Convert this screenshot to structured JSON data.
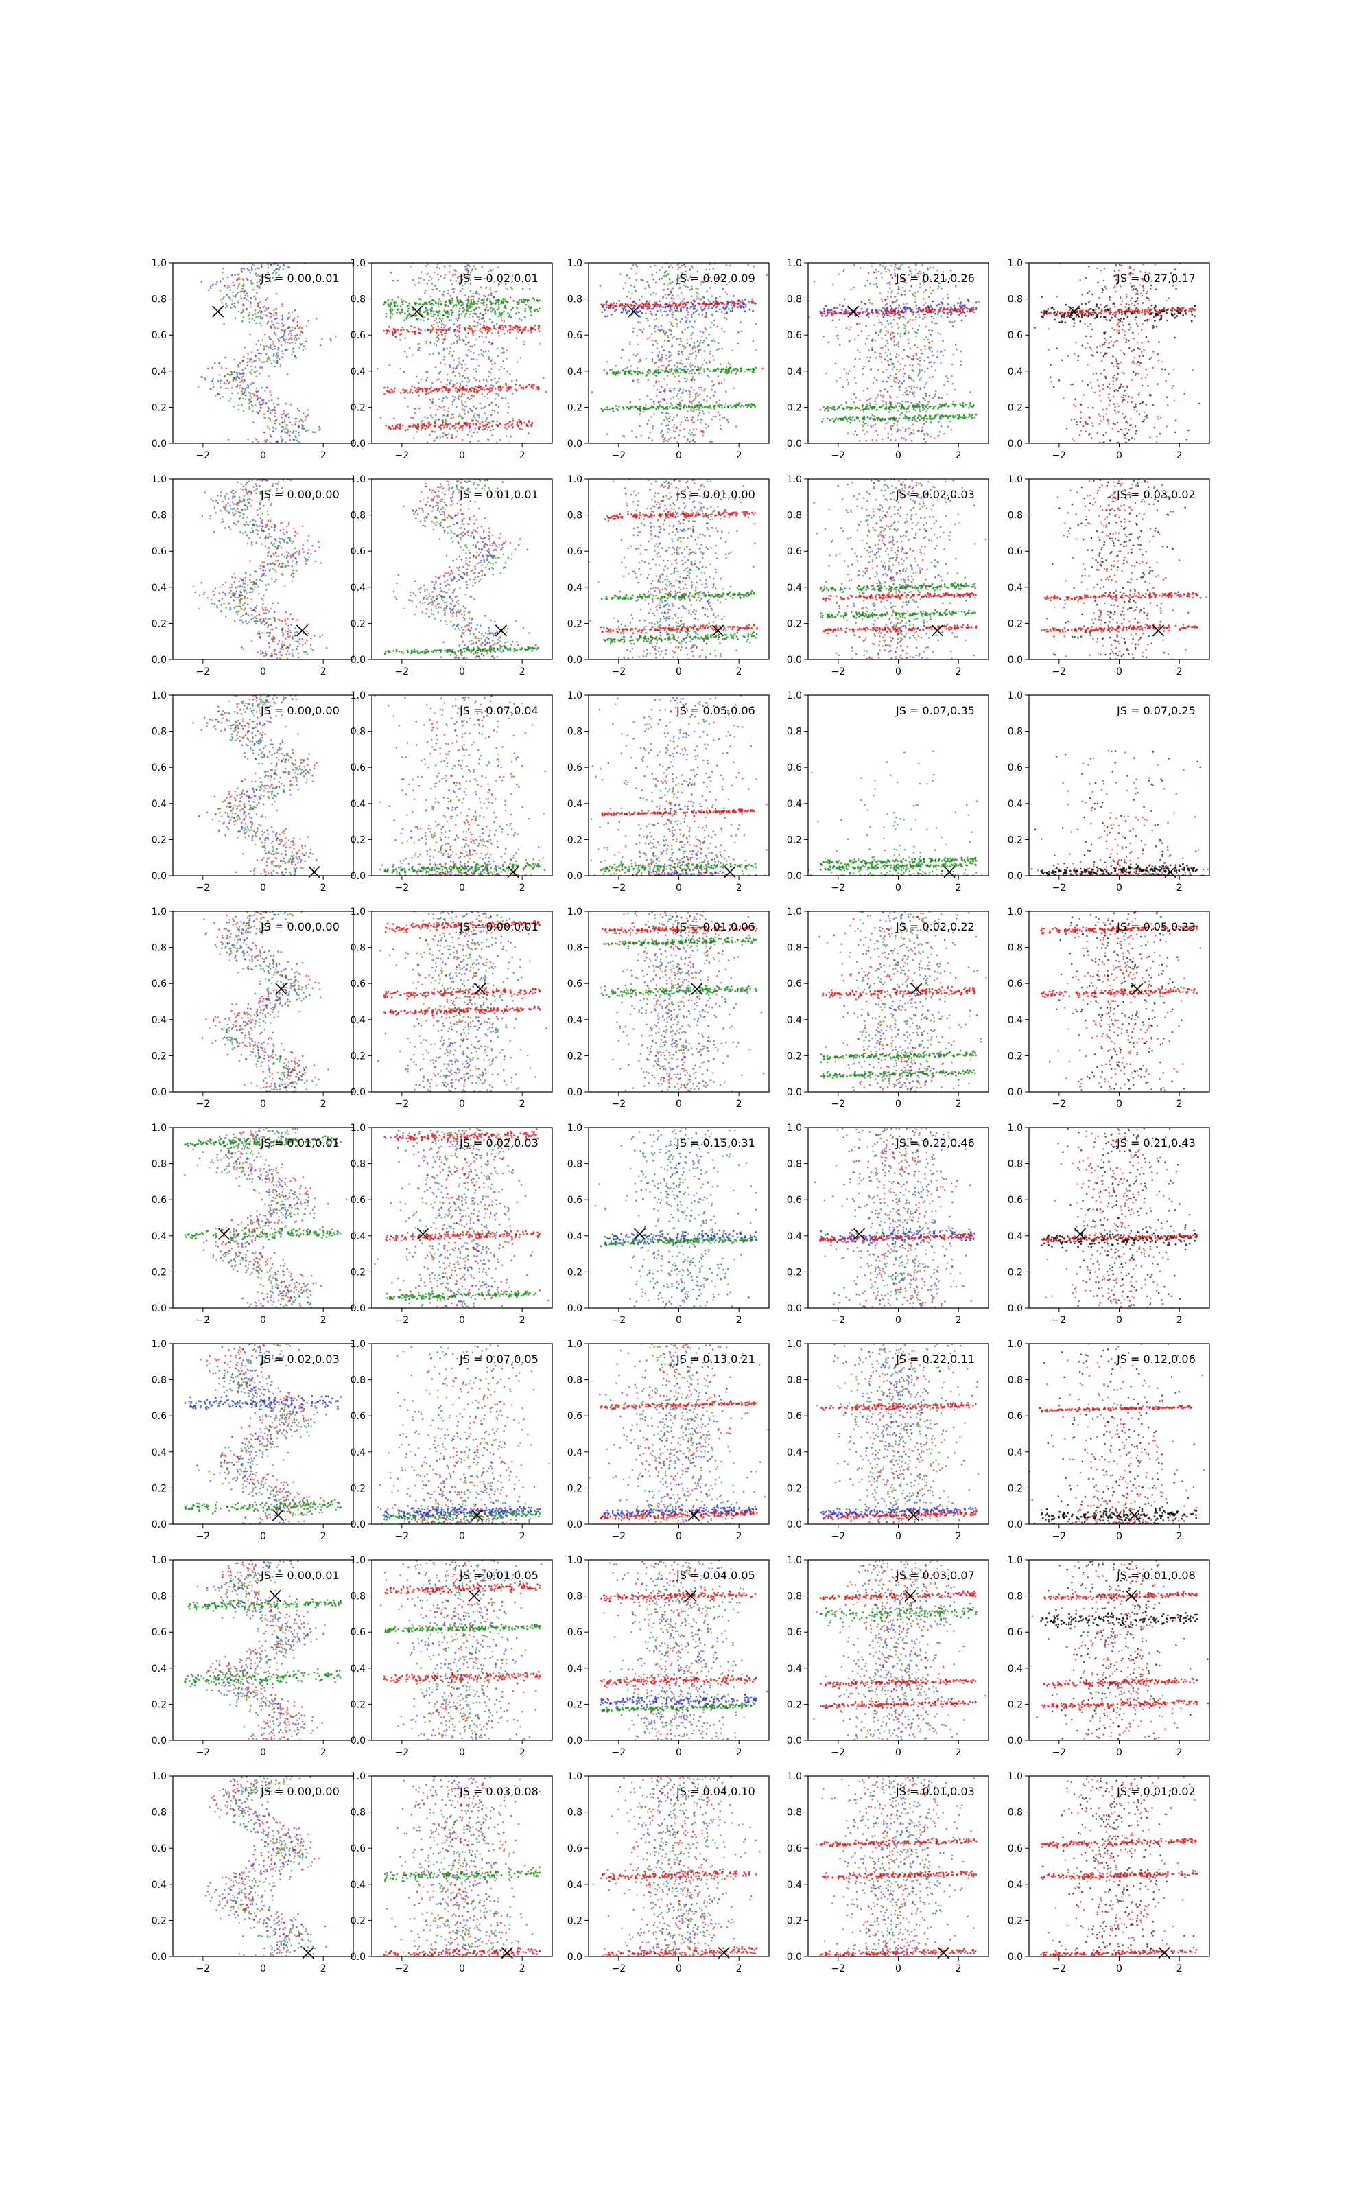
{
  "figure": {
    "rows": 8,
    "cols": 5,
    "xlim": [
      -3,
      3
    ],
    "ylim": [
      0,
      1
    ],
    "xticks": [
      -2,
      0,
      2
    ],
    "yticks": [
      0.0,
      0.2,
      0.4,
      0.6,
      0.8,
      1.0
    ],
    "colors": {
      "red": "#e41a1c",
      "green": "#1a8f1a",
      "blue": "#2b3bd9",
      "black": "#000000"
    }
  },
  "chart_data": [
    {
      "row": 0,
      "col": 0,
      "type": "scatter",
      "js": "JS = 0.00,0.01",
      "marker": [
        -1.5,
        0.73
      ],
      "series": [
        "red",
        "blue",
        "green"
      ],
      "mode": "sine",
      "bands": []
    },
    {
      "row": 0,
      "col": 1,
      "type": "scatter",
      "js": "JS = 0.02,0.01",
      "marker": [
        -1.5,
        0.73
      ],
      "series": [
        "red",
        "blue",
        "green"
      ],
      "mode": "scatter",
      "bands": [
        {
          "y": 0.73,
          "color": "green",
          "w": 0.05
        },
        {
          "y": 0.78,
          "color": "green",
          "w": 0.03
        },
        {
          "y": 0.63,
          "color": "red",
          "w": 0.03
        },
        {
          "y": 0.3,
          "color": "red",
          "w": 0.03
        },
        {
          "y": 0.1,
          "color": "red",
          "w": 0.03
        }
      ]
    },
    {
      "row": 0,
      "col": 2,
      "type": "scatter",
      "js": "JS = 0.02,0.09",
      "marker": [
        -1.5,
        0.73
      ],
      "series": [
        "blue",
        "green",
        "red"
      ],
      "mode": "scatter",
      "bands": [
        {
          "y": 0.75,
          "color": "blue",
          "w": 0.06
        },
        {
          "y": 0.77,
          "color": "red",
          "w": 0.02
        },
        {
          "y": 0.4,
          "color": "green",
          "w": 0.02
        },
        {
          "y": 0.2,
          "color": "green",
          "w": 0.02
        }
      ]
    },
    {
      "row": 0,
      "col": 3,
      "type": "scatter",
      "js": "JS = 0.21,0.26",
      "marker": [
        -1.5,
        0.73
      ],
      "series": [
        "blue",
        "green",
        "red"
      ],
      "mode": "scatter",
      "bands": [
        {
          "y": 0.74,
          "color": "blue",
          "w": 0.06
        },
        {
          "y": 0.73,
          "color": "red",
          "w": 0.02
        },
        {
          "y": 0.2,
          "color": "green",
          "w": 0.02
        },
        {
          "y": 0.14,
          "color": "green",
          "w": 0.02
        }
      ]
    },
    {
      "row": 0,
      "col": 4,
      "type": "scatter",
      "js": "JS = 0.27,0.17",
      "marker": [
        -1.5,
        0.73
      ],
      "series": [
        "black",
        "red"
      ],
      "mode": "scatter",
      "bands": [
        {
          "y": 0.72,
          "color": "black",
          "w": 0.06
        },
        {
          "y": 0.73,
          "color": "red",
          "w": 0.02
        }
      ]
    },
    {
      "row": 1,
      "col": 0,
      "type": "scatter",
      "js": "JS = 0.00,0.00",
      "marker": [
        1.3,
        0.16
      ],
      "series": [
        "red",
        "blue",
        "green"
      ],
      "mode": "sine",
      "bands": []
    },
    {
      "row": 1,
      "col": 1,
      "type": "scatter",
      "js": "JS = 0.01,0.01",
      "marker": [
        1.3,
        0.16
      ],
      "series": [
        "red",
        "blue",
        "green"
      ],
      "mode": "sine",
      "bands": [
        {
          "y": 0.05,
          "color": "green",
          "w": 0.02
        }
      ]
    },
    {
      "row": 1,
      "col": 2,
      "type": "scatter",
      "js": "JS = 0.01,0.00",
      "marker": [
        1.3,
        0.16
      ],
      "series": [
        "red",
        "blue",
        "green"
      ],
      "mode": "scatter",
      "bands": [
        {
          "y": 0.12,
          "color": "green",
          "w": 0.03
        },
        {
          "y": 0.17,
          "color": "red",
          "w": 0.02
        },
        {
          "y": 0.35,
          "color": "green",
          "w": 0.02
        },
        {
          "y": 0.8,
          "color": "red",
          "w": 0.02
        }
      ]
    },
    {
      "row": 1,
      "col": 3,
      "type": "scatter",
      "js": "JS = 0.02,0.03",
      "marker": [
        1.3,
        0.16
      ],
      "series": [
        "green",
        "blue",
        "red"
      ],
      "mode": "scatter",
      "bands": [
        {
          "y": 0.17,
          "color": "red",
          "w": 0.02
        },
        {
          "y": 0.35,
          "color": "red",
          "w": 0.02
        },
        {
          "y": 0.4,
          "color": "green",
          "w": 0.02
        },
        {
          "y": 0.25,
          "color": "green",
          "w": 0.02
        }
      ]
    },
    {
      "row": 1,
      "col": 4,
      "type": "scatter",
      "js": "JS = 0.03,0.02",
      "marker": [
        1.3,
        0.16
      ],
      "series": [
        "black",
        "red"
      ],
      "mode": "scatter",
      "bands": [
        {
          "y": 0.17,
          "color": "red",
          "w": 0.02
        },
        {
          "y": 0.35,
          "color": "red",
          "w": 0.02
        }
      ]
    },
    {
      "row": 2,
      "col": 0,
      "type": "scatter",
      "js": "JS = 0.00,0.00",
      "marker": [
        1.7,
        0.02
      ],
      "series": [
        "red",
        "blue",
        "green"
      ],
      "mode": "sine",
      "bands": []
    },
    {
      "row": 2,
      "col": 1,
      "type": "scatter",
      "js": "JS = 0.07,0.04",
      "marker": [
        1.7,
        0.02
      ],
      "series": [
        "blue",
        "red",
        "green"
      ],
      "mode": "low",
      "bands": [
        {
          "y": 0.04,
          "color": "green",
          "w": 0.03
        }
      ]
    },
    {
      "row": 2,
      "col": 2,
      "type": "scatter",
      "js": "JS = 0.05,0.06",
      "marker": [
        1.7,
        0.02
      ],
      "series": [
        "green",
        "red",
        "blue"
      ],
      "mode": "low",
      "bands": [
        {
          "y": 0.05,
          "color": "green",
          "w": 0.03
        },
        {
          "y": 0.35,
          "color": "red",
          "w": 0.01
        }
      ]
    },
    {
      "row": 2,
      "col": 3,
      "type": "scatter",
      "js": "JS = 0.07,0.35",
      "marker": [
        1.7,
        0.02
      ],
      "series": [
        "green"
      ],
      "mode": "flat",
      "bands": [
        {
          "y": 0.08,
          "color": "green",
          "w": 0.02
        },
        {
          "y": 0.05,
          "color": "green",
          "w": 0.02
        }
      ]
    },
    {
      "row": 2,
      "col": 4,
      "type": "scatter",
      "js": "JS = 0.07,0.25",
      "marker": [
        1.7,
        0.02
      ],
      "series": [
        "black",
        "red"
      ],
      "mode": "flat",
      "bands": [
        {
          "y": 0.03,
          "color": "black",
          "w": 0.03
        }
      ]
    },
    {
      "row": 3,
      "col": 0,
      "type": "scatter",
      "js": "JS = 0.00,0.00",
      "marker": [
        0.6,
        0.57
      ],
      "series": [
        "red",
        "blue",
        "green"
      ],
      "mode": "sine",
      "bands": []
    },
    {
      "row": 3,
      "col": 1,
      "type": "scatter",
      "js": "JS = 0.00,0.01",
      "marker": [
        0.6,
        0.57
      ],
      "series": [
        "red",
        "blue",
        "green"
      ],
      "mode": "scatter",
      "bands": [
        {
          "y": 0.92,
          "color": "red",
          "w": 0.03
        },
        {
          "y": 0.55,
          "color": "red",
          "w": 0.03
        },
        {
          "y": 0.45,
          "color": "red",
          "w": 0.02
        }
      ]
    },
    {
      "row": 3,
      "col": 2,
      "type": "scatter",
      "js": "JS = 0.01,0.06",
      "marker": [
        0.6,
        0.57
      ],
      "series": [
        "blue",
        "green",
        "red"
      ],
      "mode": "scatter",
      "bands": [
        {
          "y": 0.56,
          "color": "green",
          "w": 0.03
        },
        {
          "y": 0.9,
          "color": "red",
          "w": 0.02
        },
        {
          "y": 0.83,
          "color": "green",
          "w": 0.02
        }
      ]
    },
    {
      "row": 3,
      "col": 3,
      "type": "scatter",
      "js": "JS = 0.02,0.22",
      "marker": [
        0.6,
        0.57
      ],
      "series": [
        "blue",
        "green",
        "red"
      ],
      "mode": "scatter",
      "bands": [
        {
          "y": 0.55,
          "color": "red",
          "w": 0.03
        },
        {
          "y": 0.2,
          "color": "green",
          "w": 0.02
        },
        {
          "y": 0.1,
          "color": "green",
          "w": 0.02
        }
      ]
    },
    {
      "row": 3,
      "col": 4,
      "type": "scatter",
      "js": "JS = 0.05,0.23",
      "marker": [
        0.6,
        0.57
      ],
      "series": [
        "black",
        "red"
      ],
      "mode": "scatter",
      "bands": [
        {
          "y": 0.55,
          "color": "red",
          "w": 0.03
        },
        {
          "y": 0.9,
          "color": "red",
          "w": 0.02
        }
      ]
    },
    {
      "row": 4,
      "col": 0,
      "type": "scatter",
      "js": "JS = 0.01,0.01",
      "marker": [
        -1.3,
        0.41
      ],
      "series": [
        "red",
        "blue",
        "green"
      ],
      "mode": "sine",
      "bands": [
        {
          "y": 0.41,
          "color": "green",
          "w": 0.04
        },
        {
          "y": 0.92,
          "color": "green",
          "w": 0.03
        }
      ]
    },
    {
      "row": 4,
      "col": 1,
      "type": "scatter",
      "js": "JS = 0.02,0.03",
      "marker": [
        -1.3,
        0.41
      ],
      "series": [
        "green",
        "blue",
        "red"
      ],
      "mode": "scatter",
      "bands": [
        {
          "y": 0.4,
          "color": "red",
          "w": 0.03
        },
        {
          "y": 0.95,
          "color": "red",
          "w": 0.03
        },
        {
          "y": 0.07,
          "color": "green",
          "w": 0.02
        }
      ]
    },
    {
      "row": 4,
      "col": 2,
      "type": "scatter",
      "js": "JS = 0.15,0.31",
      "marker": [
        -1.3,
        0.41
      ],
      "series": [
        "blue",
        "green"
      ],
      "mode": "scatter",
      "bands": [
        {
          "y": 0.39,
          "color": "blue",
          "w": 0.05
        },
        {
          "y": 0.37,
          "color": "green",
          "w": 0.02
        }
      ]
    },
    {
      "row": 4,
      "col": 3,
      "type": "scatter",
      "js": "JS = 0.22,0.46",
      "marker": [
        -1.3,
        0.41
      ],
      "series": [
        "green",
        "blue",
        "red"
      ],
      "mode": "scatter",
      "bands": [
        {
          "y": 0.39,
          "color": "blue",
          "w": 0.05
        },
        {
          "y": 0.39,
          "color": "red",
          "w": 0.02
        }
      ]
    },
    {
      "row": 4,
      "col": 4,
      "type": "scatter",
      "js": "JS = 0.21,0.43",
      "marker": [
        -1.3,
        0.41
      ],
      "series": [
        "black",
        "red"
      ],
      "mode": "scatter",
      "bands": [
        {
          "y": 0.38,
          "color": "black",
          "w": 0.05
        },
        {
          "y": 0.39,
          "color": "red",
          "w": 0.02
        }
      ]
    },
    {
      "row": 5,
      "col": 0,
      "type": "scatter",
      "js": "JS = 0.02,0.03",
      "marker": [
        0.5,
        0.05
      ],
      "series": [
        "red",
        "blue",
        "green"
      ],
      "mode": "sine",
      "bands": [
        {
          "y": 0.67,
          "color": "blue",
          "w": 0.05
        },
        {
          "y": 0.1,
          "color": "green",
          "w": 0.04
        }
      ]
    },
    {
      "row": 5,
      "col": 1,
      "type": "scatter",
      "js": "JS = 0.07,0.05",
      "marker": [
        0.5,
        0.05
      ],
      "series": [
        "blue",
        "green",
        "red"
      ],
      "mode": "low",
      "bands": [
        {
          "y": 0.05,
          "color": "green",
          "w": 0.03
        },
        {
          "y": 0.07,
          "color": "blue",
          "w": 0.03
        }
      ]
    },
    {
      "row": 5,
      "col": 2,
      "type": "scatter",
      "js": "JS = 0.13,0.21",
      "marker": [
        0.5,
        0.05
      ],
      "series": [
        "green",
        "blue",
        "red"
      ],
      "mode": "scatter",
      "bands": [
        {
          "y": 0.66,
          "color": "red",
          "w": 0.02
        },
        {
          "y": 0.07,
          "color": "blue",
          "w": 0.03
        },
        {
          "y": 0.05,
          "color": "red",
          "w": 0.02
        }
      ]
    },
    {
      "row": 5,
      "col": 3,
      "type": "scatter",
      "js": "JS = 0.22,0.11",
      "marker": [
        0.5,
        0.05
      ],
      "series": [
        "green",
        "blue",
        "red"
      ],
      "mode": "scatter",
      "bands": [
        {
          "y": 0.65,
          "color": "red",
          "w": 0.02
        },
        {
          "y": 0.07,
          "color": "blue",
          "w": 0.03
        },
        {
          "y": 0.05,
          "color": "red",
          "w": 0.02
        }
      ]
    },
    {
      "row": 5,
      "col": 4,
      "type": "scatter",
      "js": "JS = 0.12,0.06",
      "marker": [
        0.5,
        0.05
      ],
      "series": [
        "black",
        "red"
      ],
      "mode": "low",
      "bands": [
        {
          "y": 0.05,
          "color": "black",
          "w": 0.04
        },
        {
          "y": 0.64,
          "color": "red",
          "w": 0.01
        }
      ]
    },
    {
      "row": 6,
      "col": 0,
      "type": "scatter",
      "js": "JS = 0.00,0.01",
      "marker": [
        0.4,
        0.8
      ],
      "series": [
        "red",
        "blue",
        "green"
      ],
      "mode": "sine",
      "bands": [
        {
          "y": 0.35,
          "color": "green",
          "w": 0.05
        },
        {
          "y": 0.75,
          "color": "green",
          "w": 0.03
        }
      ]
    },
    {
      "row": 6,
      "col": 1,
      "type": "scatter",
      "js": "JS = 0.01,0.05",
      "marker": [
        0.4,
        0.8
      ],
      "series": [
        "blue",
        "green",
        "red"
      ],
      "mode": "scatter",
      "bands": [
        {
          "y": 0.84,
          "color": "red",
          "w": 0.03
        },
        {
          "y": 0.35,
          "color": "red",
          "w": 0.03
        },
        {
          "y": 0.62,
          "color": "green",
          "w": 0.02
        }
      ]
    },
    {
      "row": 6,
      "col": 2,
      "type": "scatter",
      "js": "JS = 0.04,0.05",
      "marker": [
        0.4,
        0.8
      ],
      "series": [
        "green",
        "blue",
        "red"
      ],
      "mode": "scatter",
      "bands": [
        {
          "y": 0.8,
          "color": "red",
          "w": 0.03
        },
        {
          "y": 0.33,
          "color": "red",
          "w": 0.03
        },
        {
          "y": 0.22,
          "color": "blue",
          "w": 0.04
        },
        {
          "y": 0.18,
          "color": "green",
          "w": 0.02
        }
      ]
    },
    {
      "row": 6,
      "col": 3,
      "type": "scatter",
      "js": "JS = 0.03,0.07",
      "marker": [
        0.4,
        0.8
      ],
      "series": [
        "green",
        "blue",
        "red"
      ],
      "mode": "scatter",
      "bands": [
        {
          "y": 0.7,
          "color": "green",
          "w": 0.05
        },
        {
          "y": 0.8,
          "color": "red",
          "w": 0.02
        },
        {
          "y": 0.32,
          "color": "red",
          "w": 0.02
        },
        {
          "y": 0.2,
          "color": "red",
          "w": 0.02
        }
      ]
    },
    {
      "row": 6,
      "col": 4,
      "type": "scatter",
      "js": "JS = 0.01,0.08",
      "marker": [
        0.4,
        0.8
      ],
      "series": [
        "black",
        "red"
      ],
      "mode": "scatter",
      "bands": [
        {
          "y": 0.67,
          "color": "black",
          "w": 0.05
        },
        {
          "y": 0.8,
          "color": "red",
          "w": 0.02
        },
        {
          "y": 0.32,
          "color": "red",
          "w": 0.02
        },
        {
          "y": 0.2,
          "color": "red",
          "w": 0.02
        }
      ]
    },
    {
      "row": 7,
      "col": 0,
      "type": "scatter",
      "js": "JS = 0.00,0.00",
      "marker": [
        1.5,
        0.02
      ],
      "series": [
        "red",
        "blue",
        "green"
      ],
      "mode": "sine",
      "bands": []
    },
    {
      "row": 7,
      "col": 1,
      "type": "scatter",
      "js": "JS = 0.03,0.08",
      "marker": [
        1.5,
        0.02
      ],
      "series": [
        "blue",
        "green",
        "red"
      ],
      "mode": "scatter",
      "bands": [
        {
          "y": 0.45,
          "color": "green",
          "w": 0.04
        },
        {
          "y": 0.02,
          "color": "red",
          "w": 0.03
        }
      ]
    },
    {
      "row": 7,
      "col": 2,
      "type": "scatter",
      "js": "JS = 0.04,0.10",
      "marker": [
        1.5,
        0.02
      ],
      "series": [
        "blue",
        "green",
        "red"
      ],
      "mode": "scatter",
      "bands": [
        {
          "y": 0.45,
          "color": "red",
          "w": 0.03
        },
        {
          "y": 0.02,
          "color": "red",
          "w": 0.03
        }
      ]
    },
    {
      "row": 7,
      "col": 3,
      "type": "scatter",
      "js": "JS = 0.01,0.03",
      "marker": [
        1.5,
        0.02
      ],
      "series": [
        "blue",
        "green",
        "red"
      ],
      "mode": "scatter",
      "bands": [
        {
          "y": 0.45,
          "color": "red",
          "w": 0.02
        },
        {
          "y": 0.63,
          "color": "red",
          "w": 0.02
        },
        {
          "y": 0.02,
          "color": "red",
          "w": 0.02
        }
      ]
    },
    {
      "row": 7,
      "col": 4,
      "type": "scatter",
      "js": "JS = 0.01,0.02",
      "marker": [
        1.5,
        0.02
      ],
      "series": [
        "black",
        "red"
      ],
      "mode": "scatter",
      "bands": [
        {
          "y": 0.45,
          "color": "red",
          "w": 0.02
        },
        {
          "y": 0.63,
          "color": "red",
          "w": 0.02
        },
        {
          "y": 0.02,
          "color": "red",
          "w": 0.02
        }
      ]
    }
  ]
}
